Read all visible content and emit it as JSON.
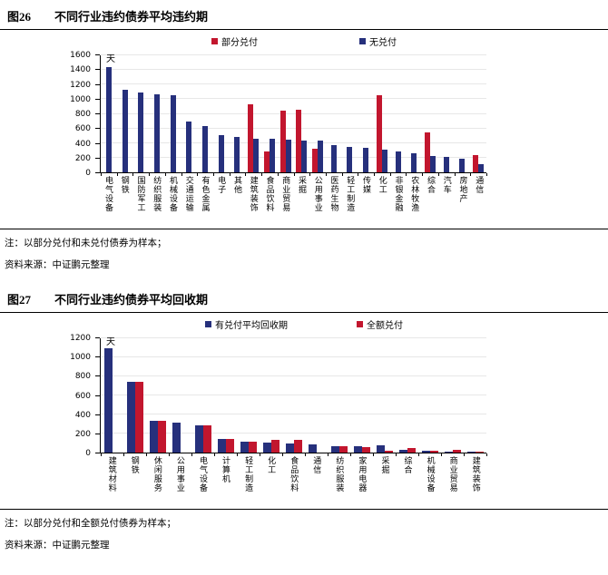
{
  "colors": {
    "navy": "#26307c",
    "red": "#c2162e",
    "grid": "#e7e7e7",
    "axis": "#000000"
  },
  "fig26": {
    "label": "图26",
    "title": "不同行业违约债券平均违约期",
    "note": "注：以部分兑付和未兑付债券为样本；",
    "source": "资料来源：中证鹏元整理"
  },
  "fig27": {
    "label": "图27",
    "title": "不同行业违约债券平均回收期",
    "note": "注：以部分兑付和全额兑付债券为样本；",
    "source": "资料来源：中证鹏元整理"
  },
  "chart_data": [
    {
      "type": "bar",
      "title": "图26 不同行业违约债券平均违约期",
      "unit_label": "天",
      "ylim": [
        0,
        1600
      ],
      "ytick_step": 200,
      "grid": true,
      "legend_position": "top",
      "null_slot": false,
      "categories": [
        "电气设备",
        "钢铁",
        "国防军工",
        "纺织服装",
        "机械设备",
        "交通运输",
        "有色金属",
        "电子",
        "其他",
        "建筑装饰",
        "食品饮料",
        "商业贸易",
        "采掘",
        "公用事业",
        "医药生物",
        "轻工制造",
        "传媒",
        "化工",
        "非银金融",
        "农林牧渔",
        "综合",
        "汽车",
        "房地产",
        "通信"
      ],
      "series": [
        {
          "name": "部分兑付",
          "color": "#c2162e",
          "values": [
            null,
            null,
            null,
            null,
            null,
            null,
            null,
            null,
            null,
            930,
            290,
            845,
            855,
            325,
            null,
            null,
            null,
            1060,
            null,
            null,
            545,
            null,
            null,
            240
          ]
        },
        {
          "name": "无兑付",
          "color": "#26307c",
          "values": [
            1435,
            1130,
            1090,
            1070,
            1050,
            695,
            635,
            505,
            490,
            460,
            465,
            445,
            435,
            440,
            370,
            345,
            340,
            310,
            290,
            265,
            225,
            210,
            190,
            115
          ]
        }
      ]
    },
    {
      "type": "bar",
      "title": "图27 不同行业违约债券平均回收期",
      "unit_label": "天",
      "ylim": [
        0,
        1200
      ],
      "ytick_step": 200,
      "grid": true,
      "legend_position": "top",
      "null_slot": true,
      "categories": [
        "建筑材料",
        "钢铁",
        "休闲服务",
        "公用事业",
        "电气设备",
        "计算机",
        "轻工制造",
        "化工",
        "食品饮料",
        "通信",
        "纺织服装",
        "家用电器",
        "采掘",
        "综合",
        "机械设备",
        "商业贸易",
        "建筑装饰"
      ],
      "series": [
        {
          "name": "有兑付平均回收期",
          "color": "#26307c",
          "values": [
            1095,
            740,
            335,
            310,
            290,
            140,
            115,
            105,
            95,
            85,
            65,
            65,
            75,
            30,
            16,
            9,
            8
          ]
        },
        {
          "name": "全额兑付",
          "color": "#c2162e",
          "values": [
            null,
            740,
            335,
            null,
            290,
            140,
            110,
            135,
            130,
            null,
            65,
            62,
            20,
            45,
            22,
            30,
            5
          ]
        }
      ]
    }
  ]
}
